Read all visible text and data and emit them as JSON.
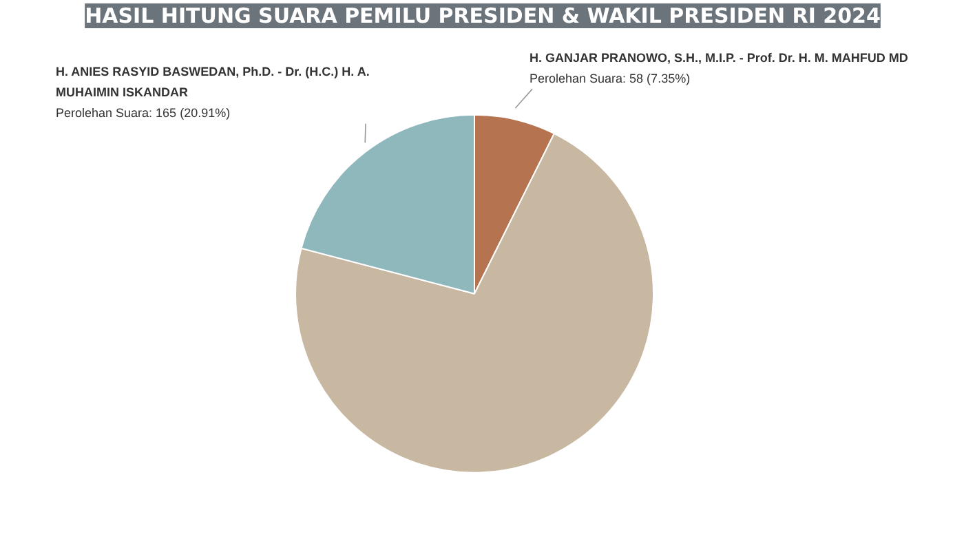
{
  "chart_data": {
    "type": "pie",
    "title": "HASIL HITUNG SUARA PEMILU PRESIDEN & WAKIL PRESIDEN RI 2024",
    "categories": [
      "H. GANJAR PRANOWO, S.H., M.I.P. - Prof. Dr. H. M. MAHFUD MD",
      null,
      "H. ANIES RASYID BASWEDAN, Ph.D. - Dr. (H.C.) H. A. MUHAIMIN ISKANDAR"
    ],
    "values": [
      7.35,
      71.74,
      20.91
    ],
    "colors": [
      "#b5734f",
      "#c8b8a2",
      "#8fb8bd"
    ],
    "value_labels": [
      "Perolehan Suara: 58 (7.35%)",
      null,
      "Perolehan Suara: 165 (20.91%)"
    ]
  }
}
